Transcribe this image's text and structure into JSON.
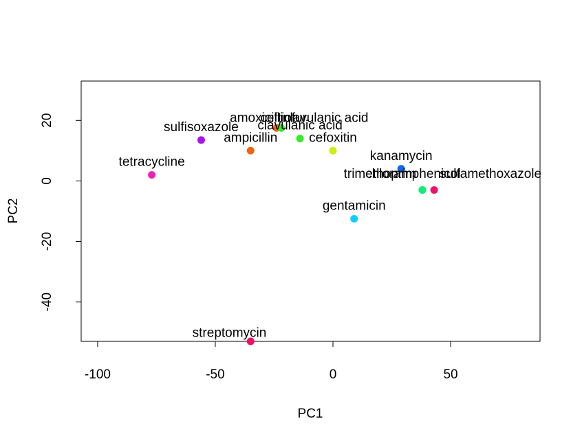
{
  "chart_data": {
    "type": "scatter",
    "title": "",
    "xlabel": "PC1",
    "ylabel": "PC2",
    "xlim": [
      -107,
      88
    ],
    "ylim": [
      -53,
      33
    ],
    "x_ticks": [
      {
        "value": -100,
        "label": "-100"
      },
      {
        "value": -50,
        "label": "-50"
      },
      {
        "value": 0,
        "label": "0"
      },
      {
        "value": 50,
        "label": "50"
      }
    ],
    "y_ticks": [
      {
        "value": -40,
        "label": "-40"
      },
      {
        "value": -20,
        "label": "-20"
      },
      {
        "value": 0,
        "label": "0"
      },
      {
        "value": 20,
        "label": "20"
      }
    ],
    "grid": false,
    "points": [
      {
        "label": "tetracycline",
        "x": -77,
        "y": 2,
        "color": "#ee22bb",
        "shown": true
      },
      {
        "label": "sulfisoxazole",
        "x": -56,
        "y": 13.5,
        "color": "#aa11ee",
        "shown": true
      },
      {
        "label": "ampicillin",
        "x": -35,
        "y": 10,
        "color": "#ee6611",
        "shown": true
      },
      {
        "label": "amoxicillin",
        "x": -24,
        "y": 17.5,
        "color": "#ee6611",
        "shown": false
      },
      {
        "label": "ceftiofur",
        "x": -22,
        "y": 17.5,
        "color": "#33ee22",
        "shown": false
      },
      {
        "label": "cefoxitin",
        "x": 0,
        "y": 10,
        "color": "#ccee11",
        "shown": true
      },
      {
        "label": "clavulanic acid",
        "x": -14,
        "y": 14,
        "color": "#33ee22",
        "shown": true
      },
      {
        "label": "kanamycin",
        "x": 29,
        "y": 4,
        "color": "#1166ee",
        "shown": true
      },
      {
        "label": "gentamicin",
        "x": 9,
        "y": -12.5,
        "color": "#11ccff",
        "shown": true
      },
      {
        "label": "trimethoprim",
        "x": 38,
        "y": -3,
        "color": "#11ee77",
        "shown": false
      },
      {
        "label": "chloramphenicol",
        "x": 38,
        "y": -3,
        "color": "#11ee77",
        "shown": false
      },
      {
        "label": "sulfamethoxazole",
        "x": 43,
        "y": -3,
        "color": "#ee1166",
        "shown": false
      },
      {
        "label": "streptomycin",
        "x": -35,
        "y": -53,
        "color": "#ee1166",
        "shown": false
      }
    ],
    "overlap_labels": [
      {
        "text": "amoxicillin",
        "x": -31,
        "y": 19.5
      },
      {
        "text": "ceftiofur",
        "x": -21,
        "y": 19.5
      },
      {
        "text": "clavulanic acid",
        "x": -3,
        "y": 19.5
      },
      {
        "text": "trimethoprim",
        "x": 20,
        "y": 1
      },
      {
        "text": "chloramphenicol",
        "x": 34,
        "y": 1
      },
      {
        "text": "sulfamethoxazole",
        "x": 67,
        "y": 1
      },
      {
        "text": "streptomycin",
        "x": -44,
        "y": -51.5
      }
    ]
  }
}
